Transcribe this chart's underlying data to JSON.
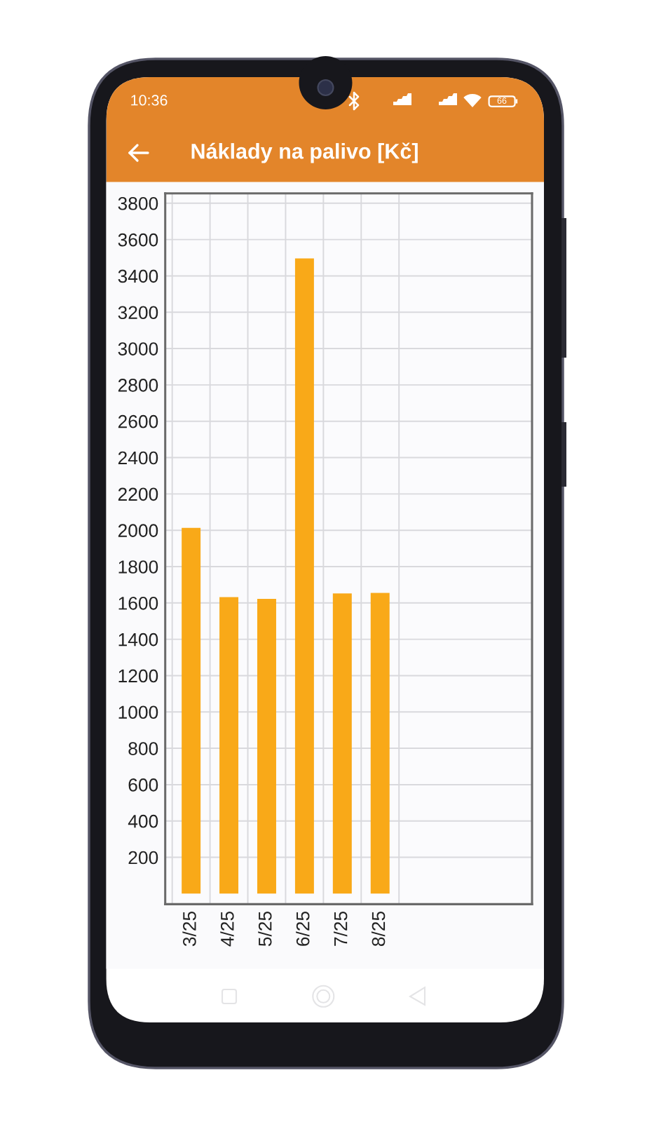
{
  "chart_data": {
    "type": "bar",
    "title": "Náklady na palivo [Kč]",
    "categories": [
      "3/25",
      "4/25",
      "5/25",
      "6/25",
      "7/25",
      "8/25"
    ],
    "values": [
      2013,
      1632,
      1622,
      3496,
      1652,
      1655
    ],
    "color": "#f9a918",
    "ylim": [
      -58,
      3854
    ],
    "yticks": [
      200,
      400,
      600,
      800,
      1000,
      1200,
      1400,
      1600,
      1800,
      2000,
      2200,
      2400,
      2600,
      2800,
      3000,
      3200,
      3400,
      3600,
      3800
    ],
    "grid": true,
    "annotations": [
      "10:36",
      "66"
    ]
  }
}
